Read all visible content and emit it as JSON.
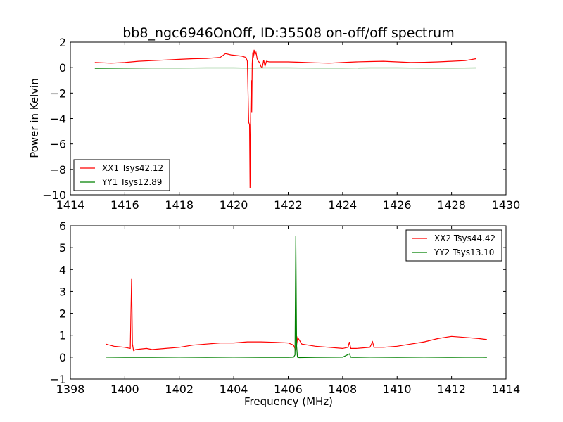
{
  "figure": {
    "title": "bb8_ngc6946OnOff, ID:35508 on-off/off spectrum",
    "ylabel": "Power in Kelvin",
    "xlabel": "Frequency (MHz)"
  },
  "chart_data": [
    {
      "type": "line",
      "title": "bb8_ngc6946OnOff, ID:35508 on-off/off spectrum",
      "xlabel": "",
      "ylabel": "Power in Kelvin",
      "xlim": [
        1414,
        1430
      ],
      "ylim": [
        -10,
        2
      ],
      "xticks": [
        1414,
        1416,
        1418,
        1420,
        1422,
        1424,
        1426,
        1428,
        1430
      ],
      "yticks": [
        -10,
        -8,
        -6,
        -4,
        -2,
        0,
        2
      ],
      "grid": false,
      "legend_position": "lower-left",
      "series": [
        {
          "name": "XX1 Tsys42.12",
          "color": "#ff0000",
          "x": [
            1414.9,
            1415.5,
            1416.0,
            1416.5,
            1417.0,
            1417.5,
            1418.0,
            1418.5,
            1419.0,
            1419.5,
            1419.7,
            1419.9,
            1420.1,
            1420.3,
            1420.45,
            1420.5,
            1420.55,
            1420.58,
            1420.6,
            1420.62,
            1420.64,
            1420.66,
            1420.68,
            1420.7,
            1420.72,
            1420.75,
            1420.78,
            1420.82,
            1420.86,
            1420.9,
            1420.95,
            1421.0,
            1421.05,
            1421.1,
            1421.15,
            1421.2,
            1421.3,
            1421.5,
            1422.0,
            1422.5,
            1423.0,
            1423.5,
            1424.0,
            1424.5,
            1425.0,
            1425.5,
            1426.0,
            1426.5,
            1427.0,
            1427.5,
            1428.0,
            1428.5,
            1428.9
          ],
          "y": [
            0.4,
            0.35,
            0.4,
            0.5,
            0.55,
            0.6,
            0.65,
            0.7,
            0.72,
            0.8,
            1.1,
            1.0,
            0.95,
            0.9,
            0.8,
            0.5,
            -4.3,
            -4.5,
            -9.5,
            -4.0,
            -1.0,
            -3.5,
            0.3,
            1.2,
            0.8,
            1.4,
            1.0,
            1.2,
            0.7,
            0.5,
            0.4,
            0.1,
            0.0,
            0.6,
            0.1,
            0.5,
            0.45,
            0.45,
            0.45,
            0.42,
            0.38,
            0.35,
            0.4,
            0.45,
            0.48,
            0.5,
            0.45,
            0.4,
            0.42,
            0.45,
            0.5,
            0.55,
            0.7
          ]
        },
        {
          "name": "YY1 Tsys12.89",
          "color": "#008000",
          "x": [
            1414.9,
            1416.0,
            1417.0,
            1418.0,
            1419.0,
            1420.0,
            1420.6,
            1421.0,
            1422.0,
            1423.0,
            1424.0,
            1425.0,
            1426.0,
            1427.0,
            1428.0,
            1428.9
          ],
          "y": [
            -0.05,
            -0.04,
            -0.03,
            -0.03,
            -0.02,
            -0.02,
            -0.03,
            -0.02,
            -0.02,
            -0.03,
            -0.03,
            -0.02,
            -0.02,
            -0.03,
            -0.03,
            -0.02
          ]
        }
      ]
    },
    {
      "type": "line",
      "title": "",
      "xlabel": "Frequency (MHz)",
      "ylabel": "",
      "xlim": [
        1398,
        1414
      ],
      "ylim": [
        -1,
        6
      ],
      "xticks": [
        1398,
        1400,
        1402,
        1404,
        1406,
        1408,
        1410,
        1412,
        1414
      ],
      "yticks": [
        -1,
        0,
        1,
        2,
        3,
        4,
        5,
        6
      ],
      "grid": false,
      "legend_position": "upper-right",
      "series": [
        {
          "name": "XX2 Tsys44.42",
          "color": "#ff0000",
          "x": [
            1399.3,
            1399.6,
            1400.0,
            1400.2,
            1400.25,
            1400.28,
            1400.32,
            1400.4,
            1400.8,
            1401.0,
            1401.5,
            1402.0,
            1402.5,
            1403.0,
            1403.5,
            1404.0,
            1404.5,
            1405.0,
            1405.5,
            1406.0,
            1406.2,
            1406.28,
            1406.35,
            1406.5,
            1407.0,
            1407.5,
            1408.0,
            1408.2,
            1408.25,
            1408.3,
            1408.5,
            1409.0,
            1409.1,
            1409.15,
            1409.5,
            1410.0,
            1410.5,
            1411.0,
            1411.5,
            1412.0,
            1412.5,
            1413.0,
            1413.3
          ],
          "y": [
            0.6,
            0.5,
            0.45,
            0.4,
            3.6,
            0.6,
            0.3,
            0.35,
            0.4,
            0.35,
            0.4,
            0.45,
            0.55,
            0.6,
            0.65,
            0.65,
            0.7,
            0.7,
            0.68,
            0.65,
            0.55,
            0.3,
            0.9,
            0.6,
            0.5,
            0.45,
            0.4,
            0.45,
            0.7,
            0.4,
            0.4,
            0.45,
            0.7,
            0.45,
            0.45,
            0.5,
            0.6,
            0.7,
            0.85,
            0.95,
            0.9,
            0.85,
            0.8
          ]
        },
        {
          "name": "YY2 Tsys13.10",
          "color": "#008000",
          "x": [
            1399.3,
            1400.0,
            1401.0,
            1402.0,
            1403.0,
            1404.0,
            1405.0,
            1406.0,
            1406.2,
            1406.25,
            1406.28,
            1406.31,
            1406.34,
            1406.4,
            1407.0,
            1408.0,
            1408.25,
            1408.3,
            1408.35,
            1409.0,
            1410.0,
            1411.0,
            1412.0,
            1413.0,
            1413.3
          ],
          "y": [
            0.0,
            -0.01,
            -0.01,
            0.0,
            -0.01,
            0.0,
            -0.01,
            -0.01,
            0.0,
            0.1,
            5.55,
            0.5,
            0.0,
            -0.02,
            -0.01,
            0.0,
            0.15,
            0.0,
            -0.01,
            0.0,
            -0.01,
            0.0,
            -0.01,
            0.0,
            -0.01
          ]
        }
      ]
    }
  ]
}
